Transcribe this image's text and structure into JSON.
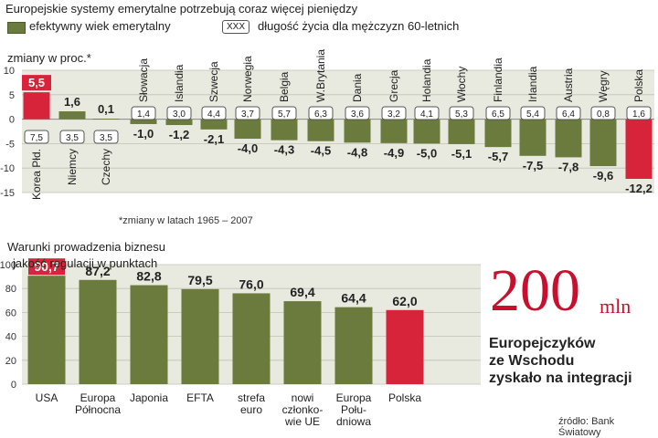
{
  "top": {
    "title": "Europejskie  systemy emerytalne potrzebują coraz więcej pieniędzy",
    "legend_bar": "efektywny wiek emerytalny",
    "legend_box_sample": "XXX",
    "legend_box_label": "długość życia dla mężczyzn 60-letnich",
    "subtitle": "zmiany w proc.*",
    "footnote": "*zmiany w latach 1965 – 2007",
    "colors": {
      "bar": "#6b7a3d",
      "highlight": "#d8243a"
    }
  },
  "bottom": {
    "title1": "Warunki prowadzenia biznesu",
    "title2": "jakość  regulacji w punktach",
    "colors": {
      "bar": "#6b7a3d",
      "highlight": "#d8243a"
    }
  },
  "side": {
    "big_number": "200",
    "unit": "mln",
    "caption": [
      "Europejczyków",
      "ze Wschodu",
      "zyskało na integracji"
    ]
  },
  "source": "źródło: Bank Światowy",
  "chart_data": [
    {
      "type": "bar",
      "title": "Europejskie  systemy emerytalne potrzebują coraz więcej pieniędzy",
      "ylabel": "zmiany w proc.*",
      "ylim": [
        -15,
        10
      ],
      "yticks": [
        10,
        5,
        0,
        -5,
        -10,
        -15
      ],
      "grid": true,
      "categories": [
        "Korea Płd.",
        "Niemcy",
        "Czechy",
        "Słowacja",
        "Islandia",
        "Szwecja",
        "Norwegia",
        "Belgia",
        "W.Brytania",
        "Dania",
        "Grecja",
        "Holandia",
        "Włochy",
        "Finlandia",
        "Irlandia",
        "Austria",
        "Węgry",
        "Polska"
      ],
      "series": [
        {
          "name": "efektywny wiek emerytalny",
          "values": [
            5.5,
            1.6,
            0.1,
            -1.0,
            -1.2,
            -2.1,
            -4.0,
            -4.3,
            -4.5,
            -4.8,
            -4.9,
            -5.0,
            -5.1,
            -5.7,
            -7.5,
            -7.8,
            -9.6,
            -12.2
          ],
          "labels": [
            "5,5",
            "1,6",
            "0,1",
            "-1,0",
            "-1,2",
            "-2,1",
            "-4,0",
            "-4,3",
            "-4,5",
            "-4,8",
            "-4,9",
            "-5,0",
            "-5,1",
            "-5,7",
            "-7,5",
            "-7,8",
            "-9,6",
            "-12,2"
          ]
        },
        {
          "name": "długość życia dla mężczyzn 60-letnich",
          "values": [
            7.5,
            3.5,
            3.5,
            1.4,
            3.0,
            4.4,
            3.7,
            5.7,
            6.3,
            3.6,
            3.2,
            4.1,
            5.3,
            6.5,
            5.4,
            6.4,
            0.8,
            1.6
          ],
          "labels": [
            "7,5",
            "3,5",
            "3,5",
            "1,4",
            "3,0",
            "4,4",
            "3,7",
            "5,7",
            "6,3",
            "3,6",
            "3,2",
            "4,1",
            "5,3",
            "6,5",
            "5,4",
            "6,4",
            "0,8",
            "1,6"
          ]
        }
      ],
      "highlight": [
        "Korea Płd.",
        "Polska"
      ],
      "ytick_labels": [
        "10",
        "5",
        "0",
        "-5",
        "-10",
        "-15"
      ]
    },
    {
      "type": "bar",
      "title": "Warunki prowadzenia biznesu – jakość regulacji w punktach",
      "ylim": [
        0,
        100
      ],
      "yticks": [
        0,
        20,
        40,
        60,
        80,
        100
      ],
      "ytick_labels": [
        "0",
        "20",
        "40",
        "60",
        "80",
        "100"
      ],
      "grid": true,
      "categories": [
        "USA",
        "Europa\nPółnocna",
        "Japonia",
        "EFTA",
        "strefa\neuro",
        "nowi\nczłonko-\nwie UE",
        "Europa\nPołu-\ndniowa",
        "Polska"
      ],
      "values": [
        90.7,
        87.2,
        82.8,
        79.5,
        76.0,
        69.4,
        64.4,
        62.0
      ],
      "labels": [
        "90,7",
        "87,2",
        "82,8",
        "79,5",
        "76,0",
        "69,4",
        "64,4",
        "62,0"
      ],
      "highlight": [
        "USA",
        "Polska"
      ]
    }
  ]
}
